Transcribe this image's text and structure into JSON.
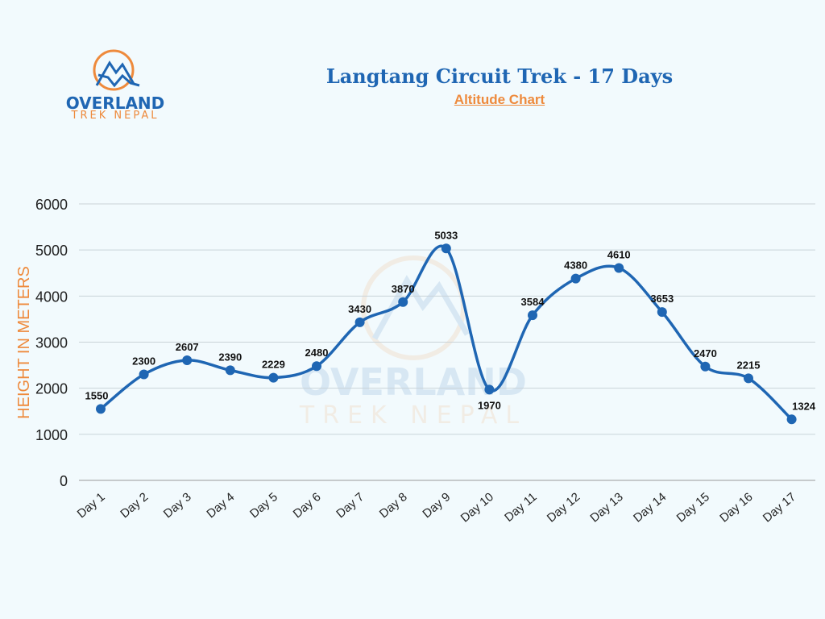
{
  "brand": {
    "name_line1": "OVERLAND",
    "name_line2": "TREK NEPAL",
    "primary_color": "#1f66b3",
    "accent_color": "#ee8a3c"
  },
  "chart_data": {
    "type": "line",
    "title": "Langtang Circuit Trek - 17 Days",
    "subtitle": "Altitude Chart",
    "xlabel": "",
    "ylabel": "HEIGHT IN METERS",
    "categories": [
      "Day 1",
      "Day 2",
      "Day 3",
      "Day 4",
      "Day 5",
      "Day 6",
      "Day 7",
      "Day 8",
      "Day 9",
      "Day 10",
      "Day 11",
      "Day 12",
      "Day 13",
      "Day 14",
      "Day 15",
      "Day 16",
      "Day 17"
    ],
    "values": [
      1550,
      2300,
      2607,
      2390,
      2229,
      2480,
      3430,
      3870,
      5033,
      1970,
      3584,
      4380,
      4610,
      3653,
      2470,
      2215,
      1324
    ],
    "ylim": [
      0,
      6000
    ],
    "yticks": [
      "0",
      "1000",
      "2000",
      "3000",
      "4000",
      "5000",
      "6000"
    ],
    "grid": true,
    "smooth": true,
    "line_color": "#1f66b3",
    "data_labels": true
  }
}
